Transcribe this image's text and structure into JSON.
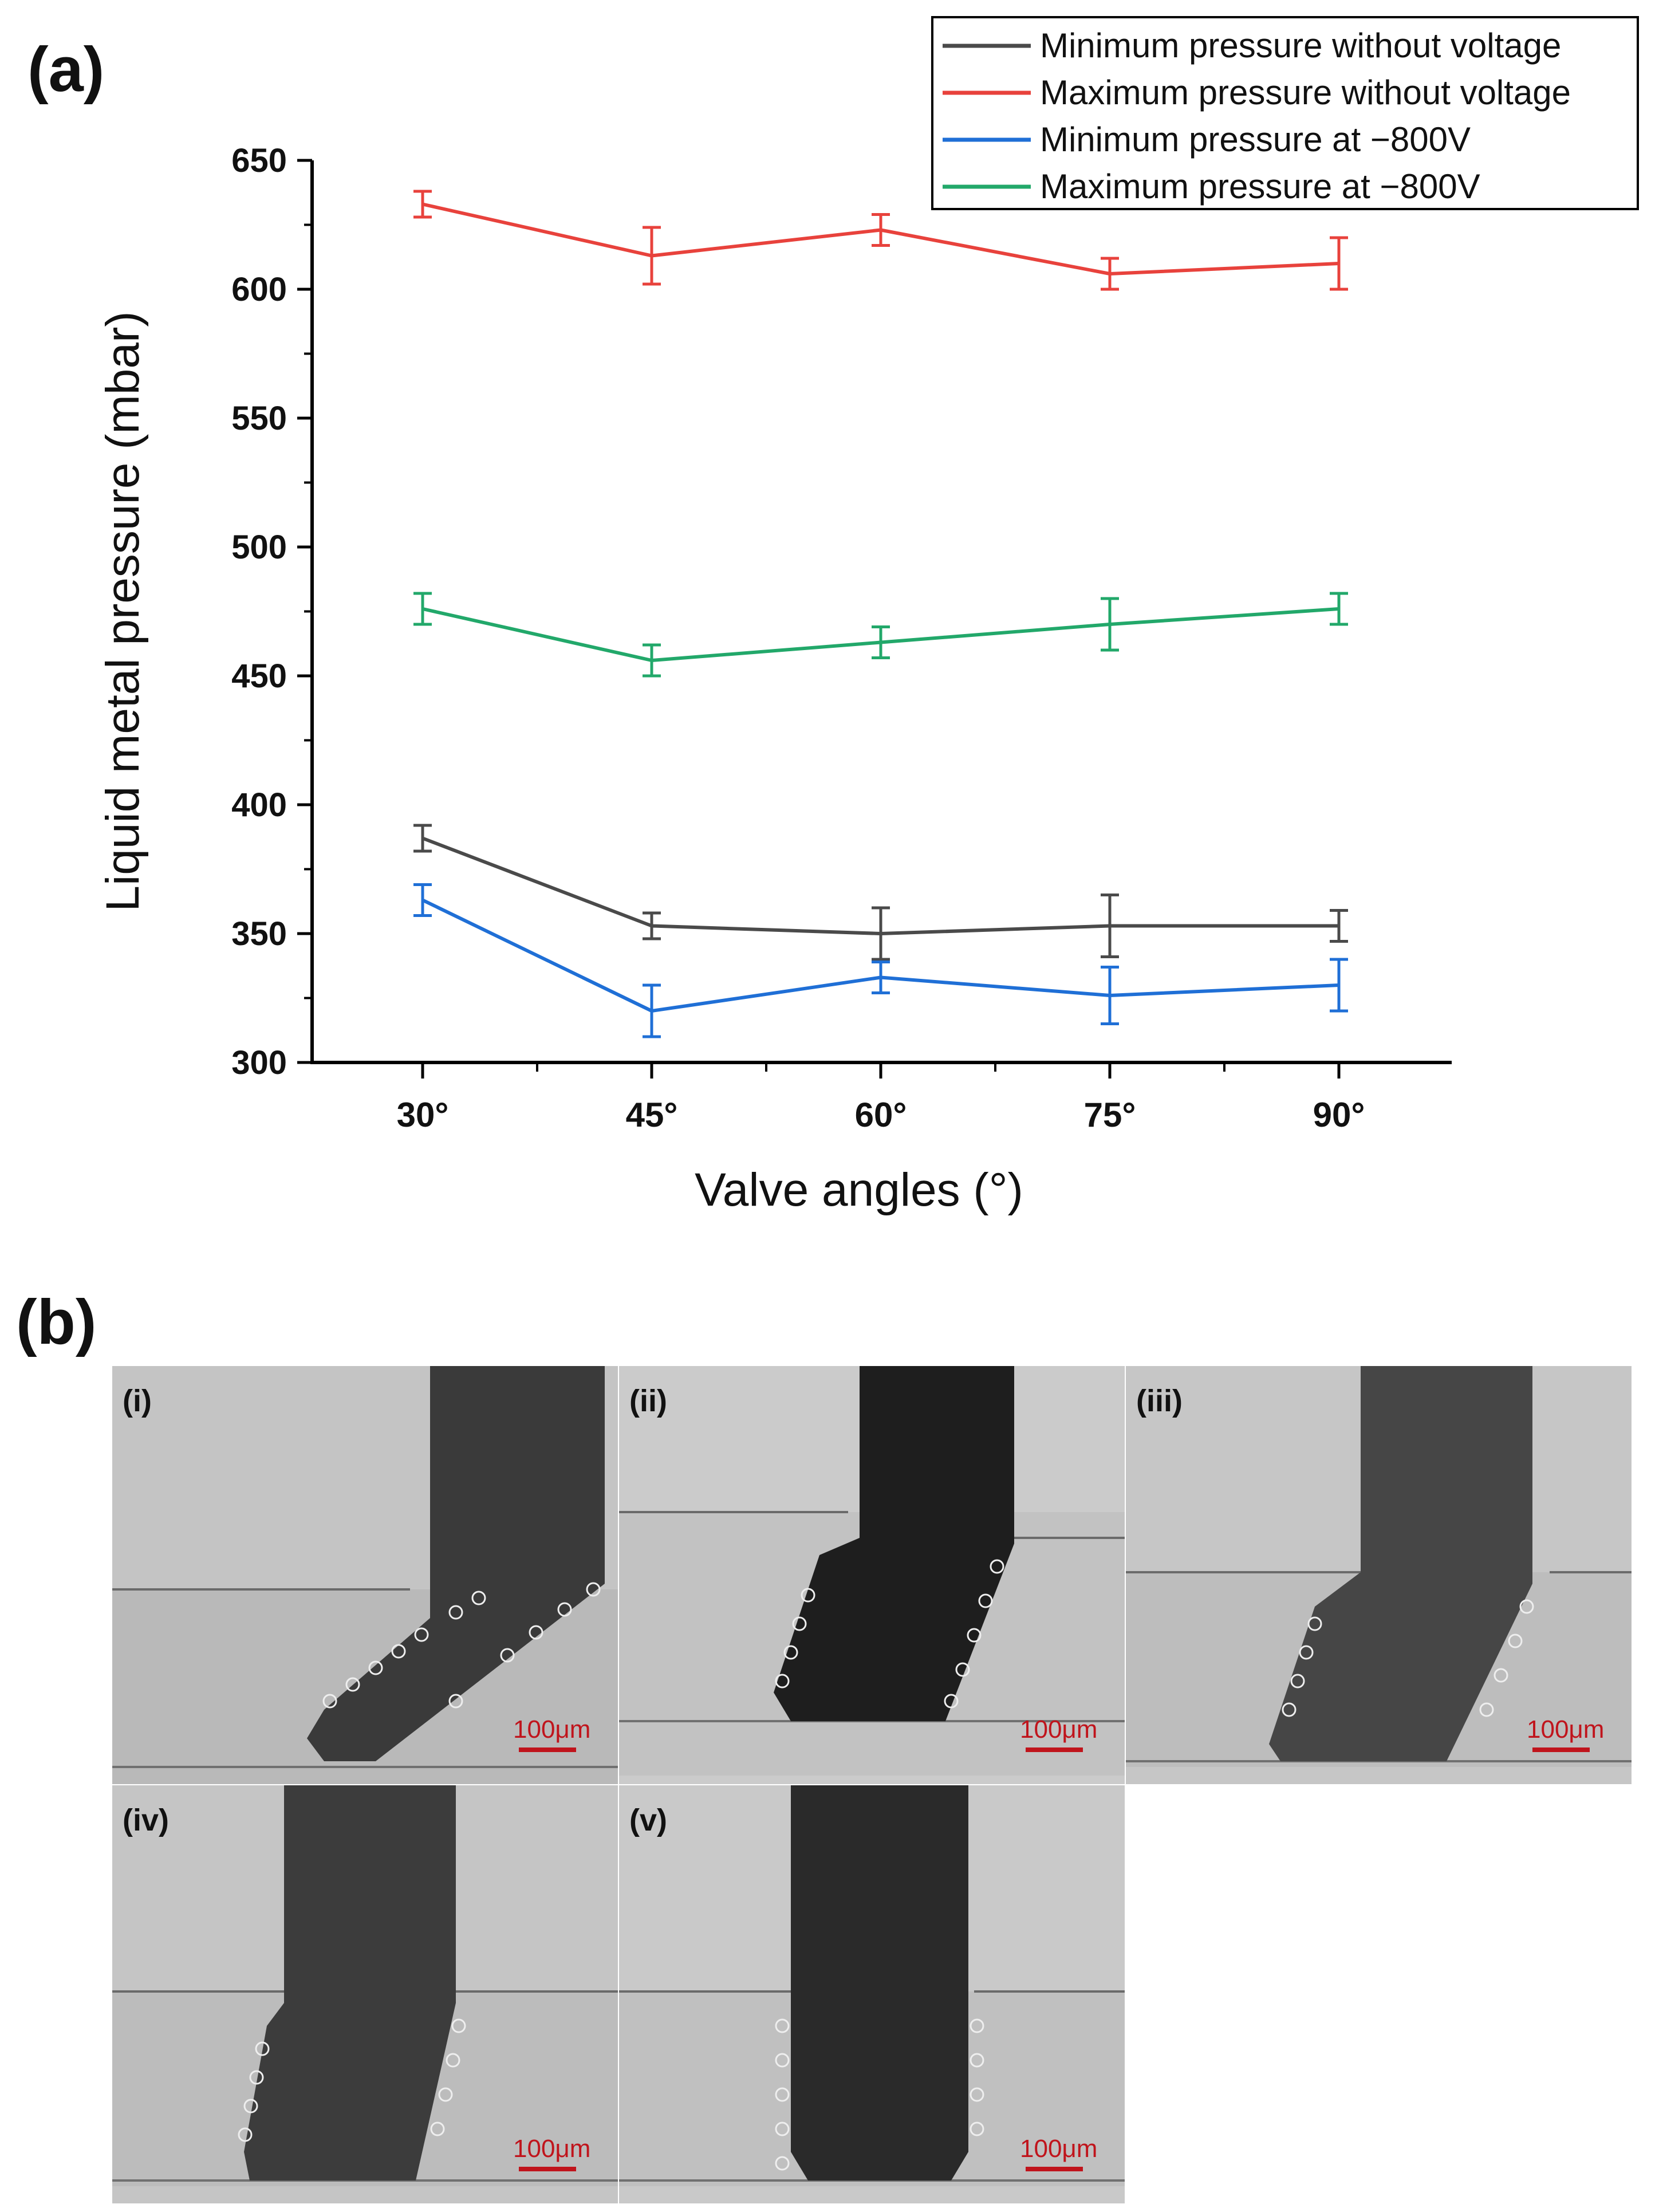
{
  "panel_a_label": "(a)",
  "panel_b_label": "(b)",
  "chart_data": {
    "type": "line",
    "xlabel": "Valve angles (°)",
    "ylabel": "Liquid metal pressure (mbar)",
    "categories": [
      "30°",
      "45°",
      "60°",
      "75°",
      "90°"
    ],
    "ylim": [
      300,
      650
    ],
    "yticks": [
      300,
      350,
      400,
      450,
      500,
      550,
      600,
      650
    ],
    "grid": false,
    "legend_position": "top-right",
    "series": [
      {
        "name": "Minimum pressure without voltage",
        "color": "#4a4a4a",
        "values": [
          387,
          353,
          350,
          353,
          353
        ],
        "errors": [
          5,
          5,
          10,
          12,
          6
        ]
      },
      {
        "name": "Maximum pressure without voltage",
        "color": "#e8423c",
        "values": [
          633,
          613,
          623,
          606,
          610
        ],
        "errors": [
          5,
          11,
          6,
          6,
          10
        ]
      },
      {
        "name": "Minimum pressure at −800V",
        "color": "#1f6fd6",
        "values": [
          363,
          320,
          333,
          326,
          330
        ],
        "errors": [
          6,
          10,
          6,
          11,
          10
        ]
      },
      {
        "name": "Maximum pressure at −800V",
        "color": "#22a86a",
        "values": [
          476,
          456,
          463,
          470,
          476
        ],
        "errors": [
          6,
          6,
          6,
          10,
          6
        ]
      }
    ]
  },
  "micrographs": [
    {
      "label": "(i)",
      "scale": "100μm"
    },
    {
      "label": "(ii)",
      "scale": "100μm"
    },
    {
      "label": "(iii)",
      "scale": "100μm"
    },
    {
      "label": "(iv)",
      "scale": "100μm"
    },
    {
      "label": "(v)",
      "scale": "100μm"
    }
  ]
}
